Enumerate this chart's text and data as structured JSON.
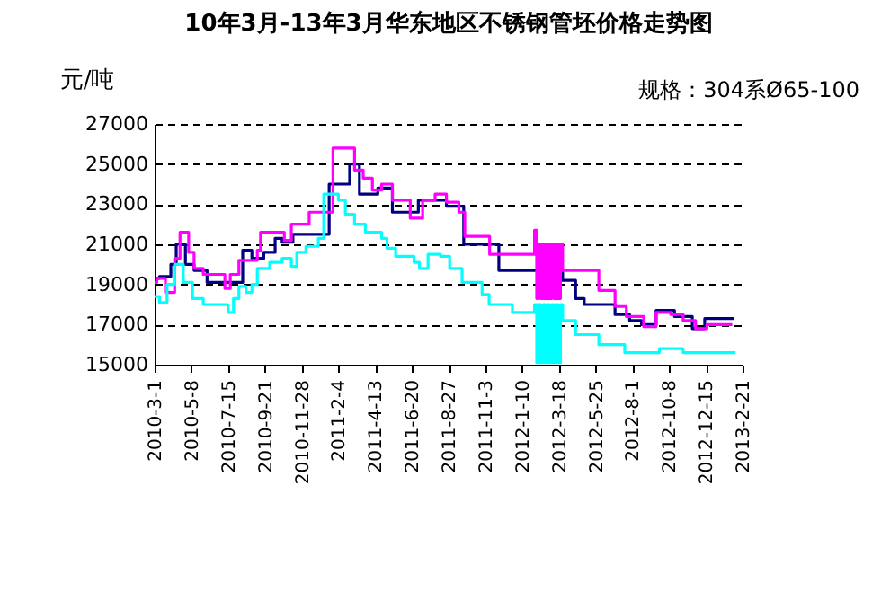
{
  "chart_data": {
    "type": "step",
    "title": "10年3月-13年3月华东地区不锈钢管坯价格走势图",
    "ylabel": "元/吨",
    "annotations": [
      "规格：304系Ø65-100"
    ],
    "xlim": [
      "2010-03-01",
      "2013-02-21"
    ],
    "xticks": [
      {
        "value": "2010-03-01",
        "label": "2010-3-1"
      },
      {
        "value": "2010-05-08",
        "label": "2010-5-8"
      },
      {
        "value": "2010-07-15",
        "label": "2010-7-15"
      },
      {
        "value": "2010-09-21",
        "label": "2010-9-21"
      },
      {
        "value": "2010-11-28",
        "label": "2010-11-28"
      },
      {
        "value": "2011-02-04",
        "label": "2011-2-4"
      },
      {
        "value": "2011-04-13",
        "label": "2011-4-13"
      },
      {
        "value": "2011-06-20",
        "label": "2011-6-20"
      },
      {
        "value": "2011-08-27",
        "label": "2011-8-27"
      },
      {
        "value": "2011-11-03",
        "label": "2011-11-3"
      },
      {
        "value": "2012-01-10",
        "label": "2012-1-10"
      },
      {
        "value": "2012-03-18",
        "label": "2012-3-18"
      },
      {
        "value": "2012-05-25",
        "label": "2012-5-25"
      },
      {
        "value": "2012-08-01",
        "label": "2012-8-1"
      },
      {
        "value": "2012-10-08",
        "label": "2012-10-8"
      },
      {
        "value": "2012-12-15",
        "label": "2012-12-15"
      },
      {
        "value": "2013-02-21",
        "label": "2013-2-21"
      }
    ],
    "ylim": [
      15000,
      27000
    ],
    "yticks": [
      15000,
      17000,
      19000,
      21000,
      23000,
      25000,
      27000
    ],
    "grid": "y",
    "series": [
      {
        "color": "#000080",
        "x": [
          "2010-03-01",
          "2010-03-10",
          "2010-03-31",
          "2010-04-10",
          "2010-04-27",
          "2010-05-13",
          "2010-06-06",
          "2010-08-11",
          "2010-08-28",
          "2010-09-19",
          "2010-10-10",
          "2010-10-23",
          "2010-11-12",
          "2011-01-18",
          "2011-02-25",
          "2011-03-15",
          "2011-04-18",
          "2011-05-15",
          "2011-07-02",
          "2011-08-23",
          "2011-09-24",
          "2011-11-28",
          "2012-03-25",
          "2012-04-18",
          "2012-05-04",
          "2012-06-30",
          "2012-07-27",
          "2012-08-18",
          "2012-09-14",
          "2012-10-18",
          "2012-11-20",
          "2012-12-13",
          "2013-02-05"
        ],
        "values": [
          19300,
          19400,
          20000,
          21000,
          20000,
          19700,
          19100,
          20700,
          20300,
          20600,
          21300,
          21100,
          21500,
          24000,
          25000,
          23500,
          23800,
          22600,
          23200,
          22900,
          21000,
          19700,
          19200,
          18300,
          18000,
          17500,
          17200,
          17000,
          17700,
          17400,
          16800,
          17300,
          17300
        ]
      },
      {
        "color": "#ff00ff",
        "x": [
          "2010-03-01",
          "2010-03-05",
          "2010-03-21",
          "2010-04-07",
          "2010-04-17",
          "2010-05-03",
          "2010-05-13",
          "2010-05-30",
          "2010-07-09",
          "2010-07-19",
          "2010-08-04",
          "2010-09-07",
          "2010-09-13",
          "2010-10-27",
          "2010-11-09",
          "2010-12-12",
          "2011-01-25",
          "2011-03-06",
          "2011-03-22",
          "2011-04-08",
          "2011-04-25",
          "2011-05-15",
          "2011-06-17",
          "2011-07-10",
          "2011-08-02",
          "2011-08-23",
          "2011-09-15",
          "2011-09-26",
          "2011-11-11",
          "2012-02-02",
          "2012-02-06",
          "2012-02-10",
          "2012-02-14",
          "2012-02-18",
          "2012-02-22",
          "2012-02-26",
          "2012-03-01",
          "2012-03-05",
          "2012-03-09",
          "2012-03-13",
          "2012-03-17",
          "2012-03-21",
          "2012-03-25",
          "2012-05-31",
          "2012-06-30",
          "2012-07-21",
          "2012-08-22",
          "2012-09-14",
          "2012-10-11",
          "2012-11-03",
          "2012-11-26",
          "2012-12-17",
          "2013-02-02"
        ],
        "values": [
          19100,
          19300,
          18600,
          20300,
          21600,
          20600,
          19800,
          19500,
          18800,
          19500,
          20200,
          20700,
          21600,
          21200,
          22000,
          22600,
          25800,
          24700,
          24300,
          23700,
          24000,
          23200,
          22300,
          23200,
          23500,
          23100,
          22600,
          21400,
          20500,
          21700,
          18300,
          21000,
          18300,
          21000,
          18300,
          21000,
          18300,
          21000,
          18300,
          21000,
          18300,
          21000,
          19700,
          18700,
          17900,
          17400,
          16900,
          17600,
          17500,
          17200,
          16800,
          17000,
          17000
        ]
      },
      {
        "color": "#00ffff",
        "x": [
          "2010-03-01",
          "2010-03-10",
          "2010-03-24",
          "2010-04-07",
          "2010-04-23",
          "2010-05-10",
          "2010-05-30",
          "2010-07-15",
          "2010-07-25",
          "2010-08-04",
          "2010-08-17",
          "2010-08-28",
          "2010-09-07",
          "2010-09-30",
          "2010-10-23",
          "2010-11-09",
          "2010-11-19",
          "2010-12-06",
          "2010-12-29",
          "2011-01-08",
          "2011-02-04",
          "2011-02-17",
          "2011-03-06",
          "2011-03-26",
          "2011-04-25",
          "2011-05-05",
          "2011-05-21",
          "2011-06-24",
          "2011-07-04",
          "2011-07-20",
          "2011-08-12",
          "2011-08-29",
          "2011-09-21",
          "2011-10-28",
          "2011-11-10",
          "2011-12-23",
          "2012-02-02",
          "2012-02-06",
          "2012-02-10",
          "2012-02-14",
          "2012-02-18",
          "2012-02-22",
          "2012-02-26",
          "2012-03-01",
          "2012-03-05",
          "2012-03-09",
          "2012-03-13",
          "2012-03-17",
          "2012-03-21",
          "2012-03-25",
          "2012-04-18",
          "2012-05-31",
          "2012-07-18",
          "2012-09-20",
          "2012-11-03",
          "2013-02-08"
        ],
        "values": [
          18400,
          18100,
          19000,
          20000,
          19100,
          18300,
          18000,
          17600,
          18300,
          18900,
          18600,
          19000,
          19800,
          20100,
          20300,
          19900,
          20600,
          20900,
          21300,
          23500,
          23200,
          22500,
          22000,
          21600,
          21300,
          20800,
          20400,
          20100,
          19800,
          20500,
          20400,
          19800,
          19100,
          18500,
          18000,
          17600,
          18000,
          15100,
          18000,
          15100,
          18000,
          15100,
          18000,
          15100,
          18000,
          15100,
          18000,
          15100,
          18000,
          17200,
          16500,
          16000,
          15600,
          15800,
          15600,
          15600
        ]
      }
    ]
  }
}
